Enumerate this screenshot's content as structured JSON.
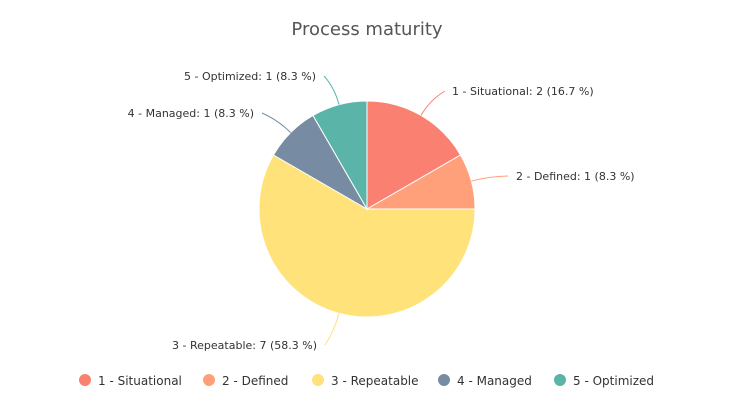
{
  "chart_data": {
    "type": "pie",
    "title": "Process maturity",
    "slices": [
      {
        "name": "1 - Situational",
        "value": 2,
        "percent": "16.7",
        "color": "#fa8072",
        "label": "1 - Situational: 2 (16.7 %)"
      },
      {
        "name": "2 - Defined",
        "value": 1,
        "percent": "8.3",
        "color": "#ffa07a",
        "label": "2 - Defined: 1 (8.3 %)"
      },
      {
        "name": "3 - Repeatable",
        "value": 7,
        "percent": "58.3",
        "color": "#ffe27a",
        "label": "3 - Repeatable: 7 (58.3 %)"
      },
      {
        "name": "4 - Managed",
        "value": 1,
        "percent": "8.3",
        "color": "#778ca3",
        "label": "4 - Managed: 1 (8.3 %)"
      },
      {
        "name": "5 - Optimized",
        "value": 1,
        "percent": "8.3",
        "color": "#5ab5a8",
        "label": "5 - Optimized: 1 (8.3 %)"
      }
    ],
    "legend_position": "bottom"
  }
}
